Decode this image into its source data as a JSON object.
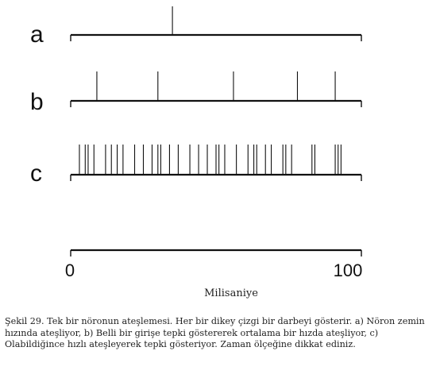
{
  "rows": [
    {
      "label": "a",
      "spikes_ms": [
        35
      ]
    },
    {
      "label": "b",
      "spikes_ms": [
        9,
        30,
        56,
        78,
        91
      ]
    },
    {
      "label": "c",
      "spikes_ms": [
        3,
        5,
        6,
        8,
        12,
        14,
        16,
        18,
        22,
        25,
        28,
        30,
        31,
        34,
        37,
        41,
        44,
        47,
        50,
        51,
        53,
        57,
        61,
        63,
        64,
        67,
        69,
        73,
        74,
        76,
        83,
        84,
        91,
        92,
        93
      ]
    }
  ],
  "axis": {
    "min": 0,
    "max": 100,
    "tick_min_label": "0",
    "tick_max_label": "100",
    "unit_label": "Milisaniye"
  },
  "caption": "Şekil 29. Tek bir nöronun ateşlemesi. Her bir dikey çizgi bir darbeyi gösterir. a) Nöron zemin hızında ateşliyor, b) Belli bir girişe tepki göstererek ortalama bir hızda ateşliyor, c) Olabildiğince hızlı ateşleyerek tepki gösteriyor. Zaman ölçeğine dikkat ediniz."
}
